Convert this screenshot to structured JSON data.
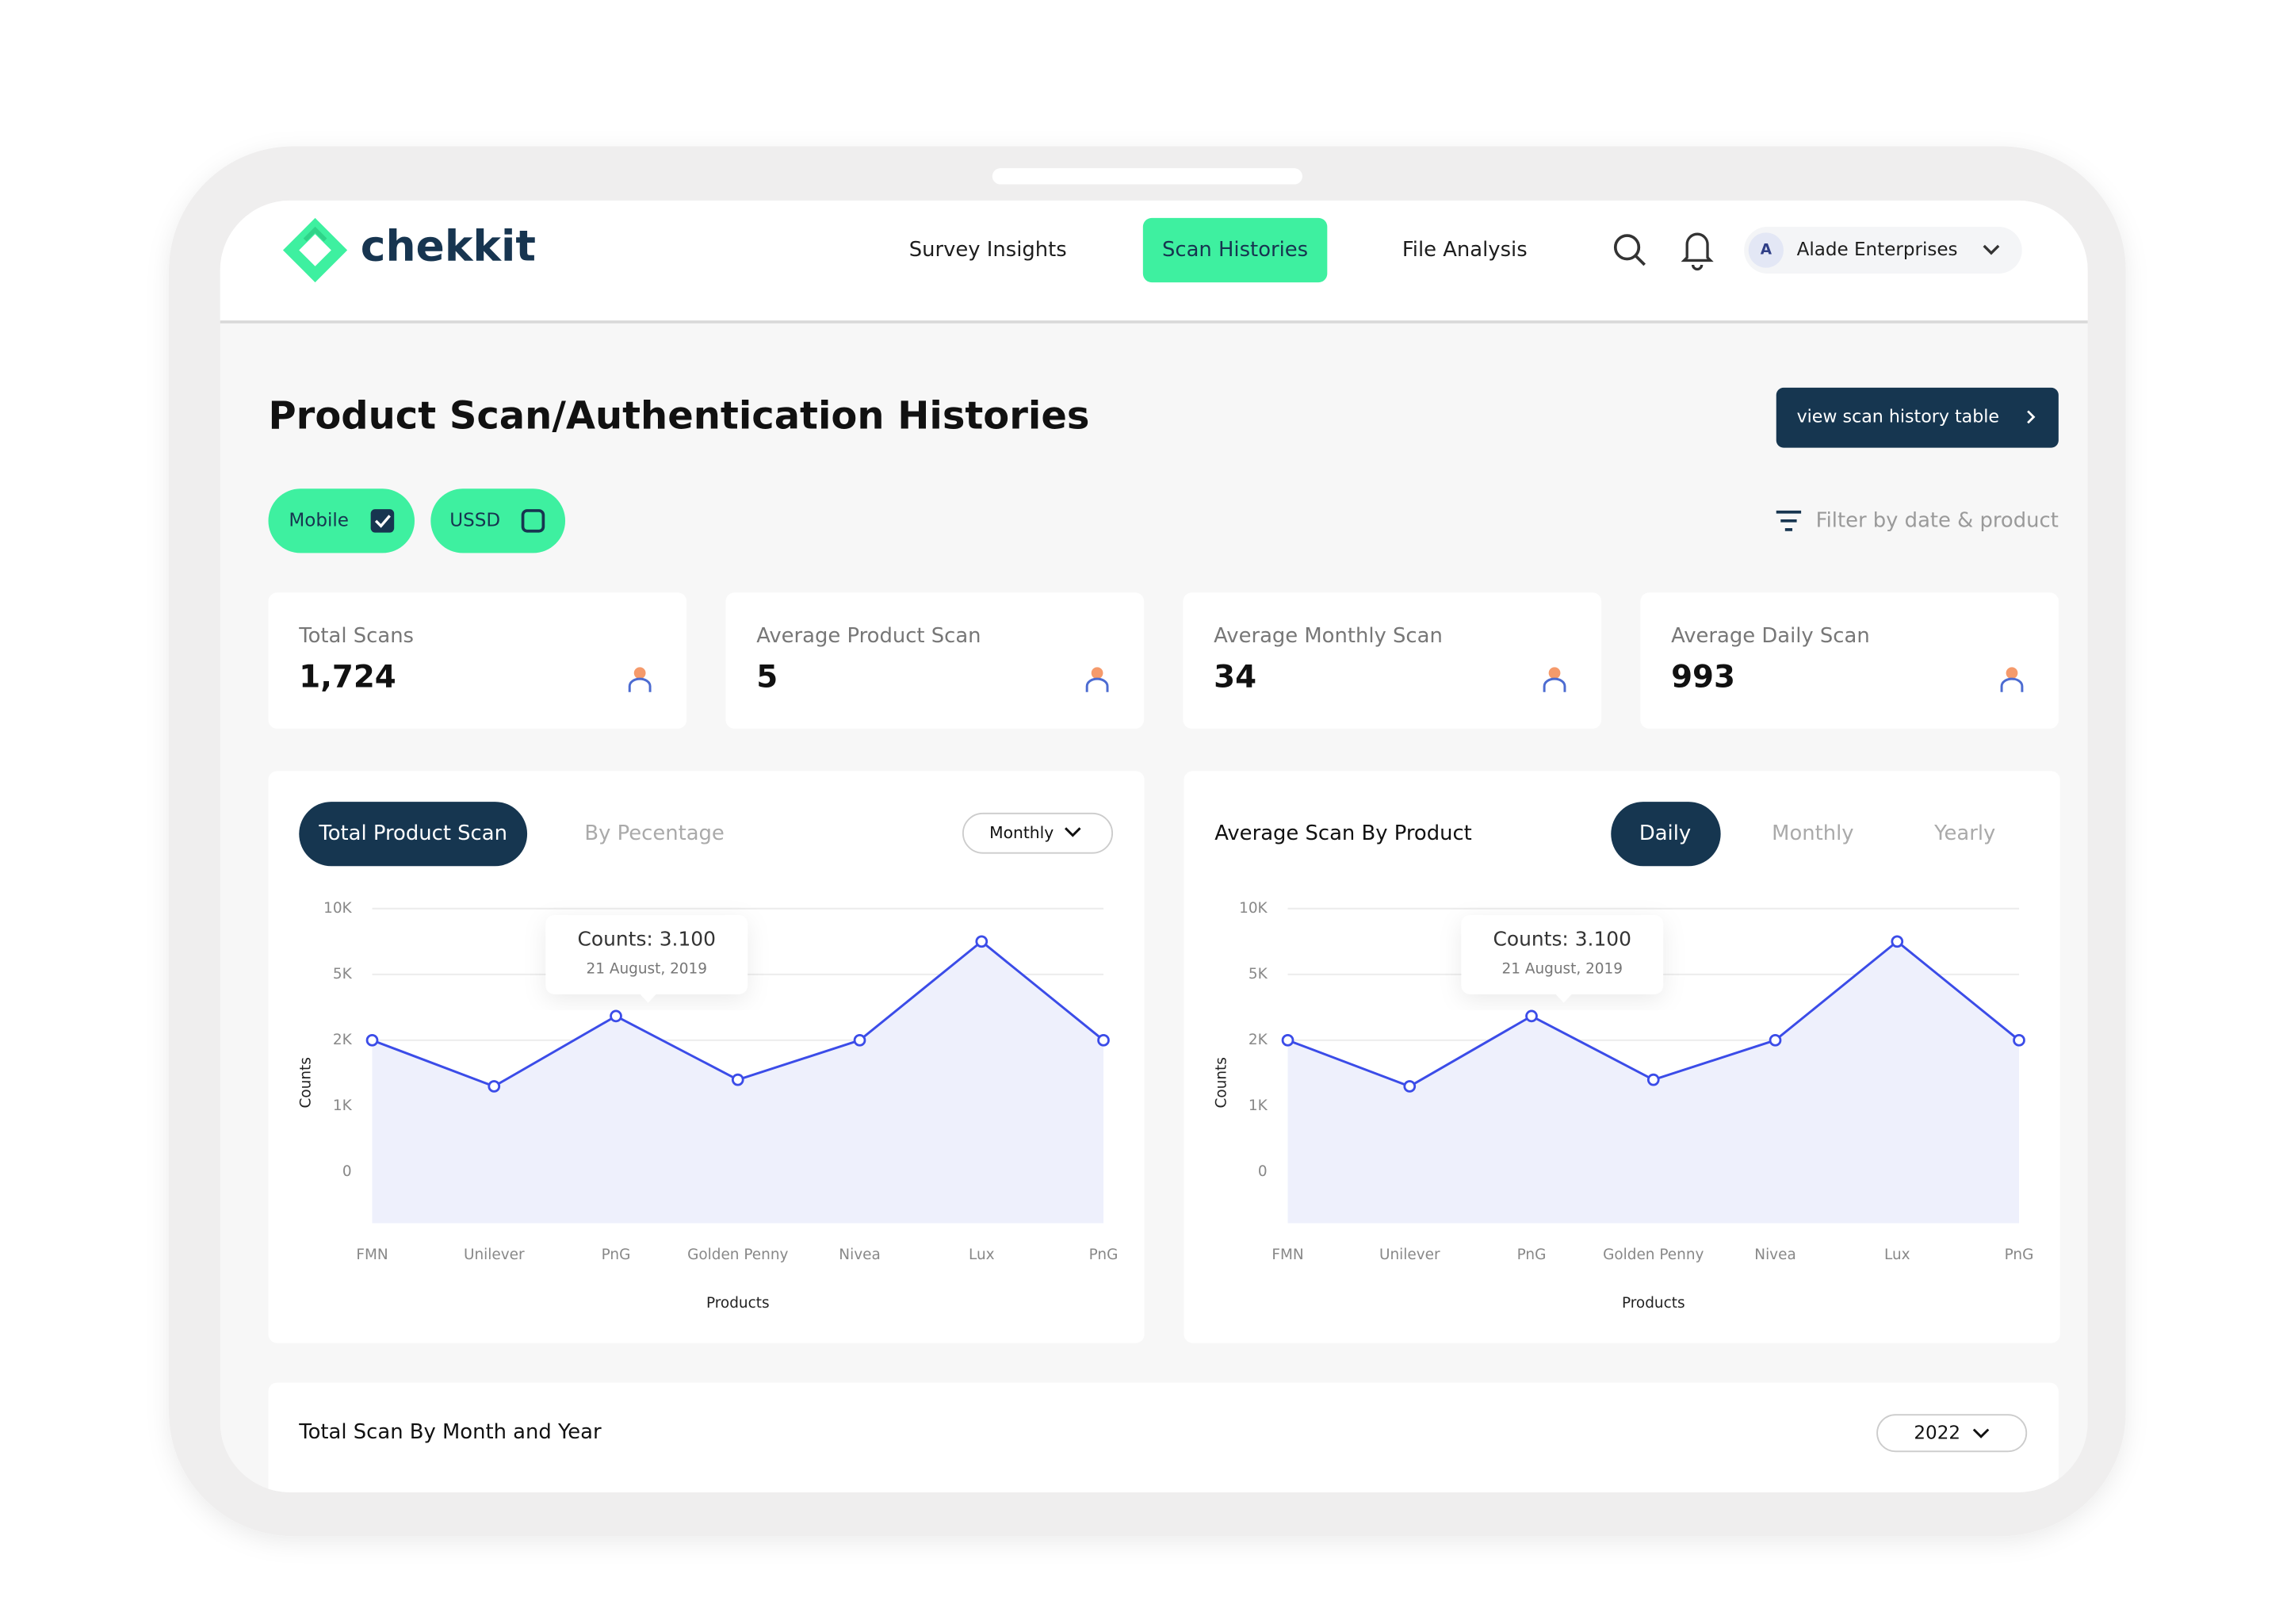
{
  "header": {
    "logo": "chekkit",
    "nav": [
      "Survey Insights",
      "Scan Histories",
      "File Analysis"
    ],
    "avatar": "A",
    "user": "Alade Enterprises"
  },
  "page": {
    "title": "Product Scan/Authentication Histories",
    "history_button": "view scan history table",
    "channels": [
      "Mobile",
      "USSD"
    ],
    "filter": "Filter by date & product"
  },
  "stats": [
    {
      "label": "Total Scans",
      "value": "1,724"
    },
    {
      "label": "Average Product Scan",
      "value": "5"
    },
    {
      "label": "Average Monthly Scan",
      "value": "34"
    },
    {
      "label": "Average Daily Scan",
      "value": "993"
    }
  ],
  "chart_tabs": [
    {
      "tabs": [
        "Total Product Scan",
        "By Pecentage"
      ],
      "dropdown": "Monthly"
    },
    {
      "title": "Average  Scan By Product",
      "tabs": [
        "Daily",
        "Monthly",
        "Yearly"
      ]
    }
  ],
  "chart_data": [
    {
      "type": "line",
      "categories": [
        "FMN",
        "Unilever",
        "PnG",
        "Golden Penny",
        "Nivea",
        "Lux",
        "PnG"
      ],
      "values": [
        2000,
        1300,
        3100,
        1400,
        2000,
        7500,
        2000
      ],
      "color": "#3b4ce8",
      "ylim": [
        0,
        10000
      ],
      "yticks": [
        {
          "value": 10000,
          "label": "10K"
        },
        {
          "value": 5000,
          "label": "5K"
        },
        {
          "value": 2000,
          "label": "2K"
        },
        {
          "value": 1000,
          "label": "1K"
        },
        0
      ],
      "xlabel": "Products",
      "ylabel": "Counts",
      "tooltip": [
        "Counts: 3.100",
        "21 August, 2019"
      ]
    },
    {
      "type": "line",
      "categories": [
        "FMN",
        "Unilever",
        "PnG",
        "Golden Penny",
        "Nivea",
        "Lux",
        "PnG"
      ],
      "values": [
        2000,
        1300,
        3100,
        1400,
        2000,
        7500,
        2000
      ],
      "color": "#3b4ce8",
      "ylim": [
        0,
        10000
      ],
      "yticks": [
        {
          "value": 10000,
          "label": "10K"
        },
        {
          "value": 5000,
          "label": "5K"
        },
        {
          "value": 2000,
          "label": "2K"
        },
        {
          "value": 1000,
          "label": "1K"
        },
        0
      ],
      "xlabel": "Products",
      "ylabel": "Counts",
      "tooltip": [
        "Counts: 3.100",
        "21 August, 2019"
      ]
    }
  ],
  "bottom": {
    "title": "Total  Scan By Month and Year",
    "dropdown": "2022"
  }
}
